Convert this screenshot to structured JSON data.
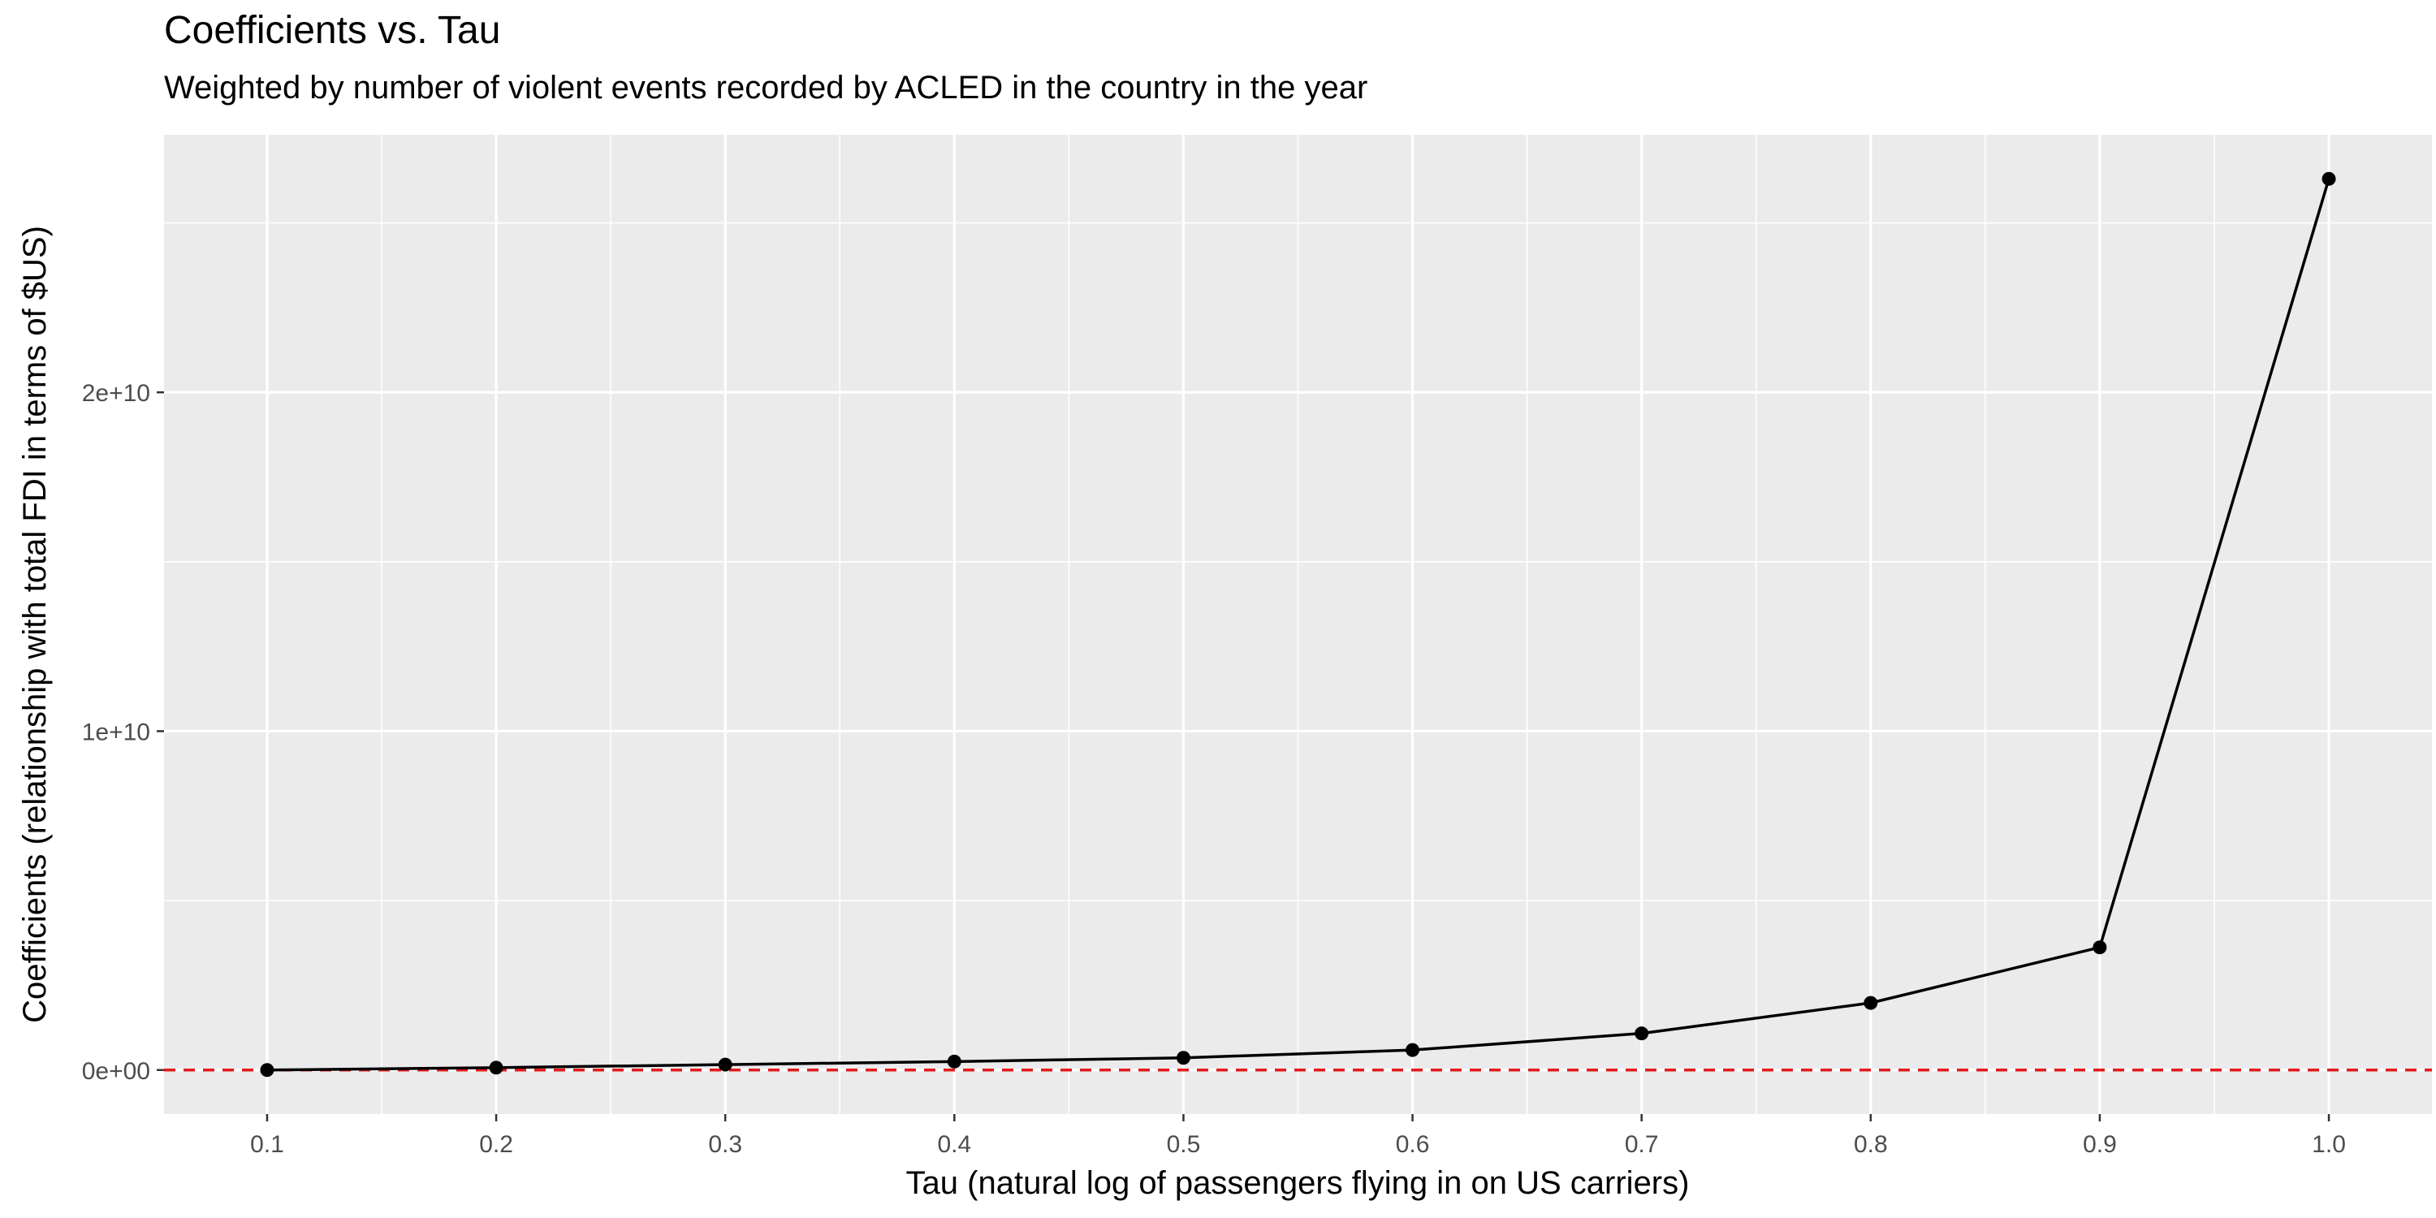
{
  "chart_data": {
    "type": "line",
    "title": "Coefficients vs. Tau",
    "subtitle": "Weighted by number of violent events recorded by ACLED in the country in the year",
    "xlabel": "Tau (natural log of passengers flying in on US carriers)",
    "ylabel": "Coefficients (relationship with total FDI in terms of $US)",
    "x": [
      0.1,
      0.2,
      0.3,
      0.4,
      0.5,
      0.6,
      0.7,
      0.8,
      0.9,
      1.0
    ],
    "series": [
      {
        "values": [
          0,
          70000000,
          160000000,
          250000000,
          360000000,
          590000000,
          1080000000,
          1980000000,
          3620000000,
          26300000000
        ]
      }
    ],
    "xlim": [
      0.055,
      1.045
    ],
    "ylim": [
      -1300000000,
      27600000000
    ],
    "x_ticks": [
      0.1,
      0.2,
      0.3,
      0.4,
      0.5,
      0.6,
      0.7,
      0.8,
      0.9,
      1.0
    ],
    "x_tick_labels": [
      "0.1",
      "0.2",
      "0.3",
      "0.4",
      "0.5",
      "0.6",
      "0.7",
      "0.8",
      "0.9",
      "1.0"
    ],
    "y_ticks": [
      0,
      10000000000,
      20000000000
    ],
    "y_tick_labels": [
      "0e+00",
      "1e+10",
      "2e+10"
    ],
    "reference_line": {
      "y": 0,
      "style": "dashed",
      "color": "#e41a1c"
    },
    "grid": true,
    "legend": "none",
    "colors": {
      "panel": "#ebebeb",
      "grid": "#ffffff",
      "line": "#000000",
      "reference": "#e41a1c",
      "tick_text": "#4d4d4d"
    }
  }
}
